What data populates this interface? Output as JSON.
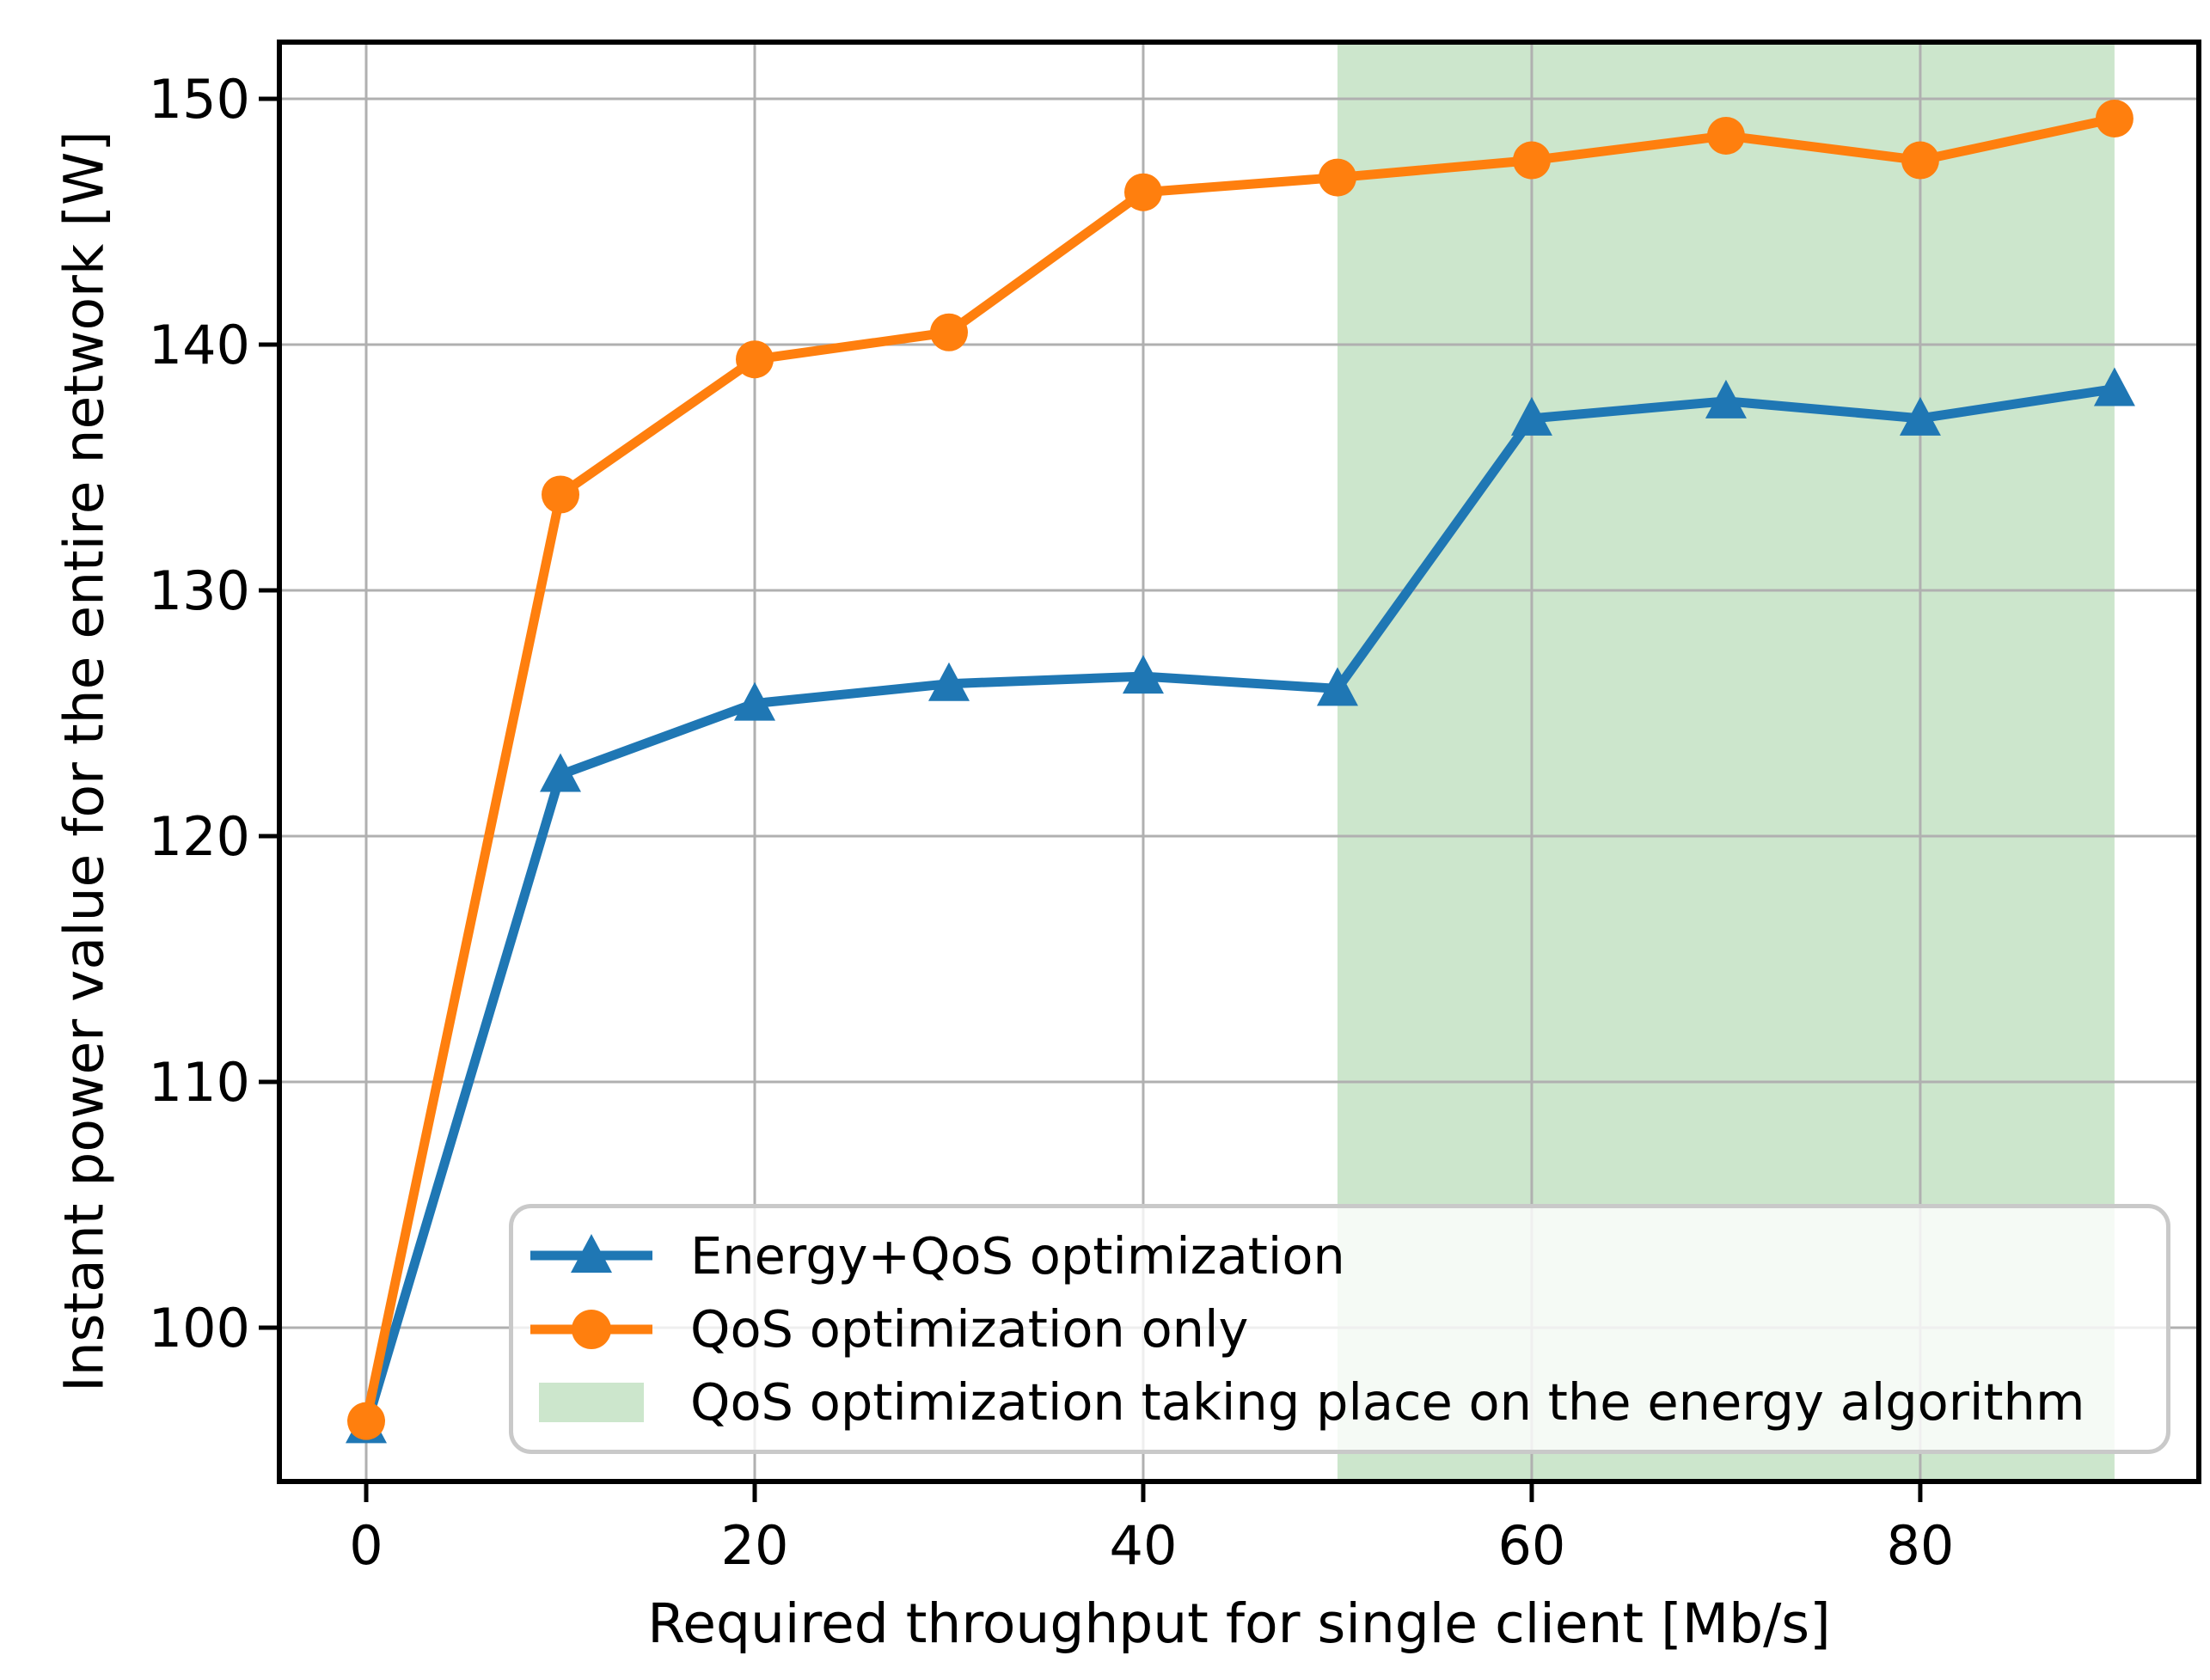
{
  "figure": {
    "xlabel": "Required throughput for single client [Mb/s]",
    "ylabel": "Instant power value for the entire network [W]"
  },
  "chart_data": {
    "type": "line",
    "title": "",
    "x": [
      0,
      10,
      20,
      30,
      40,
      50,
      60,
      70,
      80,
      90
    ],
    "series": [
      {
        "name": "Energy+QoS optimization",
        "color": "#1f77b4",
        "marker": "triangle-up",
        "values": [
          96.0,
          122.5,
          125.4,
          126.2,
          126.5,
          126.0,
          137.0,
          137.7,
          137.0,
          138.2
        ]
      },
      {
        "name": "QoS optimization only",
        "color": "#ff7f0e",
        "marker": "circle",
        "values": [
          96.2,
          133.9,
          139.4,
          140.5,
          146.2,
          146.8,
          147.5,
          148.5,
          147.5,
          149.2
        ]
      }
    ],
    "span": {
      "label": "QoS optimization taking place on the energy algorithm",
      "x_from": 50,
      "x_to": 90,
      "color": "#008000",
      "opacity": 0.2
    },
    "xlabel": "Required throughput for single client [Mb/s]",
    "ylabel": "Instant power value for the entire network [W]",
    "xticks": [
      0,
      20,
      40,
      60,
      80
    ],
    "yticks": [
      100,
      110,
      120,
      130,
      140,
      150
    ],
    "xlim": [
      -4.47,
      94.34
    ],
    "ylim": [
      93.74,
      152.31
    ],
    "grid": true,
    "grid_color": "#b0b0b0",
    "spine_color": "#000000",
    "tick_color": "#000000",
    "legend_position": "lower-center-inside"
  }
}
